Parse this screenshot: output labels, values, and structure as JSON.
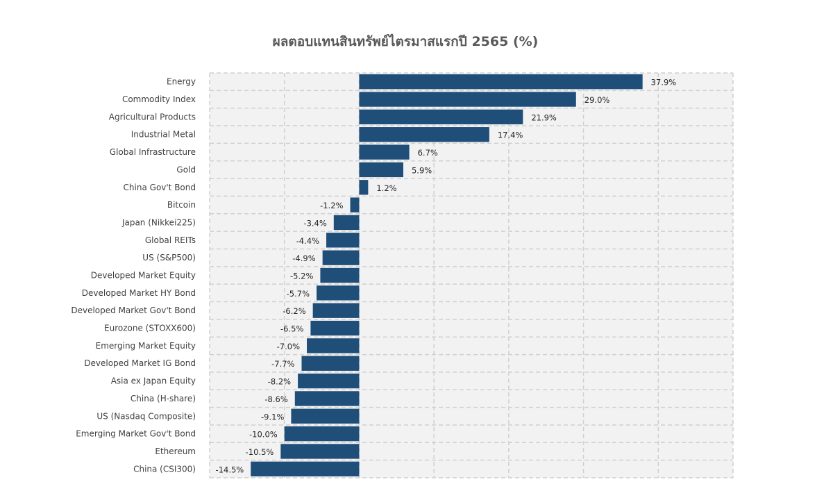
{
  "chart_data": {
    "type": "bar",
    "orientation": "horizontal",
    "title": "ผลตอบแทนสินทรัพย์ไตรมาสแรกปี 2565 (%)",
    "xlabel": "",
    "ylabel": "",
    "xlim": [
      -20,
      50
    ],
    "grid": true,
    "bar_color": "#1f4e79",
    "categories": [
      "Energy",
      "Commodity Index",
      "Agricultural Products",
      "Industrial Metal",
      "Global Infrastructure",
      "Gold",
      "China Gov't Bond",
      "Bitcoin",
      "Japan (Nikkei225)",
      "Global REITs",
      "US (S&P500)",
      "Developed Market Equity",
      "Developed Market HY Bond",
      "Developed Market Gov't Bond",
      "Eurozone (STOXX600)",
      "Emerging Market Equity",
      "Developed Market IG Bond",
      "Asia ex Japan Equity",
      "China (H-share)",
      "US (Nasdaq Composite)",
      "Emerging Market Gov't Bond",
      "Ethereum",
      "China (CSI300)"
    ],
    "values": [
      37.9,
      29.0,
      21.9,
      17.4,
      6.7,
      5.9,
      1.2,
      -1.2,
      -3.4,
      -4.4,
      -4.9,
      -5.2,
      -5.7,
      -6.2,
      -6.5,
      -7.0,
      -7.7,
      -8.2,
      -8.6,
      -9.1,
      -10.0,
      -10.5,
      -14.5
    ],
    "data_labels": [
      "37.9%",
      "29.0%",
      "21.9%",
      "17.4%",
      "6.7%",
      "5.9%",
      "1.2%",
      "-1.2%",
      "-3.4%",
      "-4.4%",
      "-4.9%",
      "-5.2%",
      "-5.7%",
      "-6.2%",
      "-6.5%",
      "-7.0%",
      "-7.7%",
      "-8.2%",
      "-8.6%",
      "-9.1%",
      "-10.0%",
      "-10.5%",
      "-14.5%"
    ]
  }
}
